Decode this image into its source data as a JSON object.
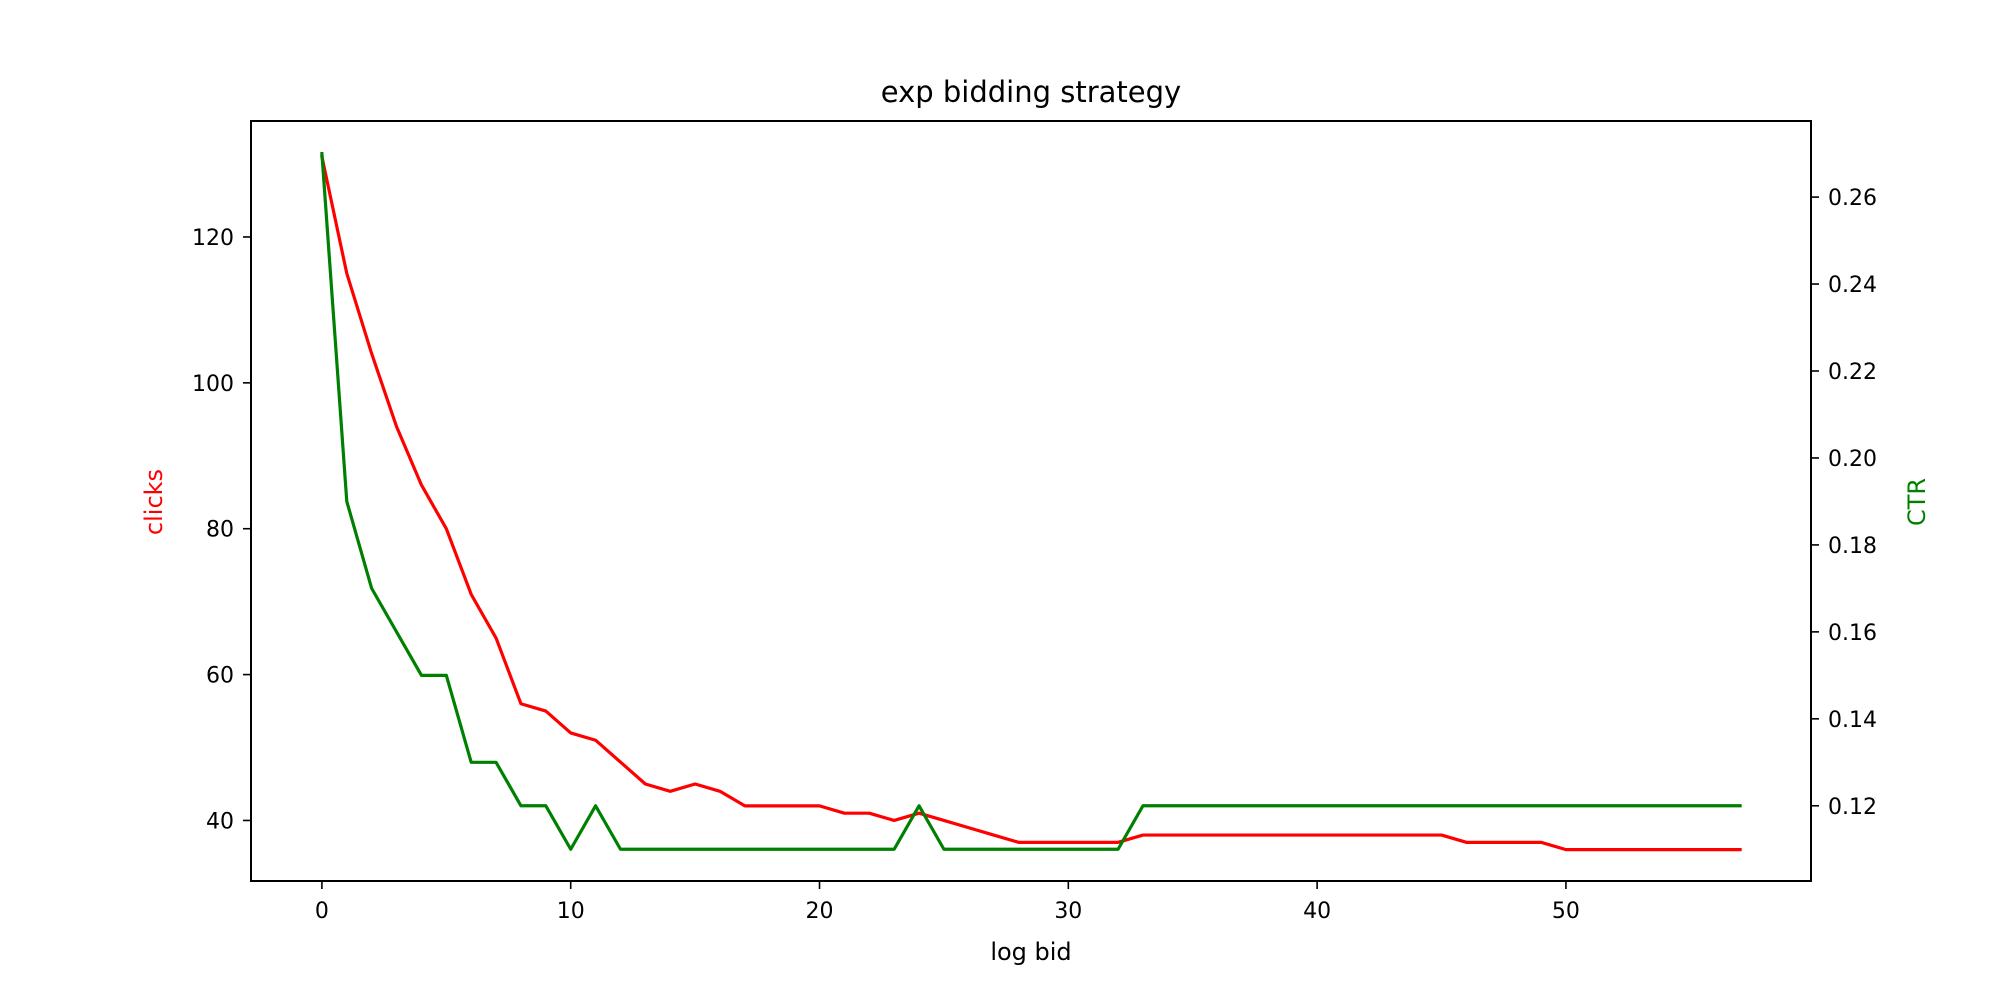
{
  "chart_data": {
    "type": "line",
    "title": "exp bidding strategy",
    "xlabel": "log bid",
    "ylabel_left": "clicks",
    "ylabel_right": "CTR",
    "colors": {
      "clicks": "#ff0000",
      "ctr": "#008000"
    },
    "xlim": [
      -2.85,
      59.85
    ],
    "ylim_left": [
      31.7,
      135.9
    ],
    "ylim_right": [
      0.1027,
      0.2775
    ],
    "x_ticks": [
      0,
      10,
      20,
      30,
      40,
      50
    ],
    "y_left_ticks": [
      40,
      60,
      80,
      100,
      120
    ],
    "y_right_ticks": [
      "0.12",
      "0.14",
      "0.16",
      "0.18",
      "0.20",
      "0.22",
      "0.24",
      "0.26"
    ],
    "grid": false,
    "series": [
      {
        "name": "clicks",
        "axis": "left",
        "color": "#ff0000",
        "x": [
          0,
          1,
          2,
          3,
          4,
          5,
          6,
          7,
          8,
          9,
          10,
          11,
          12,
          13,
          14,
          15,
          16,
          17,
          18,
          19,
          20,
          21,
          22,
          23,
          24,
          25,
          26,
          27,
          28,
          29,
          30,
          31,
          32,
          33,
          34,
          35,
          36,
          37,
          38,
          39,
          40,
          41,
          42,
          43,
          44,
          45,
          46,
          47,
          48,
          49,
          50,
          51,
          52,
          53,
          54,
          55,
          56,
          57
        ],
        "values": [
          131,
          115,
          104,
          94,
          86,
          80,
          71,
          65,
          56,
          55,
          52,
          51,
          48,
          45,
          44,
          45,
          44,
          42,
          42,
          42,
          42,
          41,
          41,
          40,
          41,
          40,
          39,
          38,
          37,
          37,
          37,
          37,
          37,
          38,
          38,
          38,
          38,
          38,
          38,
          38,
          38,
          38,
          38,
          38,
          38,
          38,
          37,
          37,
          37,
          37,
          36,
          36,
          36,
          36,
          36,
          36,
          36,
          36
        ]
      },
      {
        "name": "CTR",
        "axis": "right",
        "color": "#008000",
        "x": [
          0,
          1,
          2,
          3,
          4,
          5,
          6,
          7,
          8,
          9,
          10,
          11,
          12,
          13,
          14,
          15,
          16,
          17,
          18,
          19,
          20,
          21,
          22,
          23,
          24,
          25,
          26,
          27,
          28,
          29,
          30,
          31,
          32,
          33,
          34,
          35,
          36,
          37,
          38,
          39,
          40,
          41,
          42,
          43,
          44,
          45,
          46,
          47,
          48,
          49,
          50,
          51,
          52,
          53,
          54,
          55,
          56,
          57
        ],
        "values": [
          0.27,
          0.19,
          0.17,
          0.16,
          0.15,
          0.15,
          0.13,
          0.13,
          0.12,
          0.12,
          0.11,
          0.12,
          0.11,
          0.11,
          0.11,
          0.11,
          0.11,
          0.11,
          0.11,
          0.11,
          0.11,
          0.11,
          0.11,
          0.11,
          0.12,
          0.11,
          0.11,
          0.11,
          0.11,
          0.11,
          0.11,
          0.11,
          0.11,
          0.12,
          0.12,
          0.12,
          0.12,
          0.12,
          0.12,
          0.12,
          0.12,
          0.12,
          0.12,
          0.12,
          0.12,
          0.12,
          0.12,
          0.12,
          0.12,
          0.12,
          0.12,
          0.12,
          0.12,
          0.12,
          0.12,
          0.12,
          0.12,
          0.12
        ]
      }
    ]
  }
}
